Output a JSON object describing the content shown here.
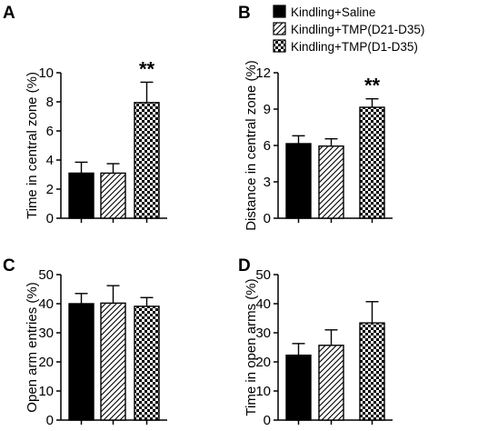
{
  "colors": {
    "solid": "#000000",
    "background": "#ffffff",
    "hatch": "#000000"
  },
  "legend": [
    {
      "label": "Kindling+Saline",
      "pattern": "solid"
    },
    {
      "label": "Kindling+TMP(D21-D35)",
      "pattern": "hatch"
    },
    {
      "label": "Kindling+TMP(D1-D35)",
      "pattern": "checker"
    }
  ],
  "chart_data": [
    {
      "panel": "A",
      "type": "bar",
      "ylabel": "Time in central zone (%)",
      "ylim": [
        0,
        10
      ],
      "yticks": [
        "0",
        "2",
        "4",
        "6",
        "8",
        "10"
      ],
      "series": [
        {
          "name": "Kindling+Saline",
          "value": 3.1,
          "error": 0.75
        },
        {
          "name": "Kindling+TMP(D21-D35)",
          "value": 3.1,
          "error": 0.65
        },
        {
          "name": "Kindling+TMP(D1-D35)",
          "value": 7.95,
          "error": 1.4
        }
      ],
      "annotations": [
        {
          "series_index": 2,
          "text": "**"
        }
      ]
    },
    {
      "panel": "B",
      "type": "bar",
      "ylabel": "Distance in central zone (%)",
      "ylim": [
        0,
        12
      ],
      "yticks": [
        "0",
        "3",
        "6",
        "9",
        "12"
      ],
      "series": [
        {
          "name": "Kindling+Saline",
          "value": 6.15,
          "error": 0.65
        },
        {
          "name": "Kindling+TMP(D21-D35)",
          "value": 5.95,
          "error": 0.6
        },
        {
          "name": "Kindling+TMP(D1-D35)",
          "value": 9.15,
          "error": 0.7
        }
      ],
      "annotations": [
        {
          "series_index": 2,
          "text": "**"
        }
      ]
    },
    {
      "panel": "C",
      "type": "bar",
      "ylabel": "Open arm entries (%)",
      "ylim": [
        0,
        50
      ],
      "yticks": [
        "0",
        "10",
        "20",
        "30",
        "40",
        "50"
      ],
      "series": [
        {
          "name": "Kindling+Saline",
          "value": 40,
          "error": 3.5
        },
        {
          "name": "Kindling+TMP(D21-D35)",
          "value": 40.2,
          "error": 6
        },
        {
          "name": "Kindling+TMP(D1-D35)",
          "value": 39.1,
          "error": 3
        }
      ],
      "annotations": []
    },
    {
      "panel": "D",
      "type": "bar",
      "ylabel": "Time in open arms (%)",
      "ylim": [
        0,
        50
      ],
      "yticks": [
        "0",
        "10",
        "20",
        "30",
        "40",
        "50"
      ],
      "series": [
        {
          "name": "Kindling+Saline",
          "value": 22.3,
          "error": 4
        },
        {
          "name": "Kindling+TMP(D21-D35)",
          "value": 25.7,
          "error": 5.3
        },
        {
          "name": "Kindling+TMP(D1-D35)",
          "value": 33.4,
          "error": 7.3
        }
      ],
      "annotations": []
    }
  ]
}
